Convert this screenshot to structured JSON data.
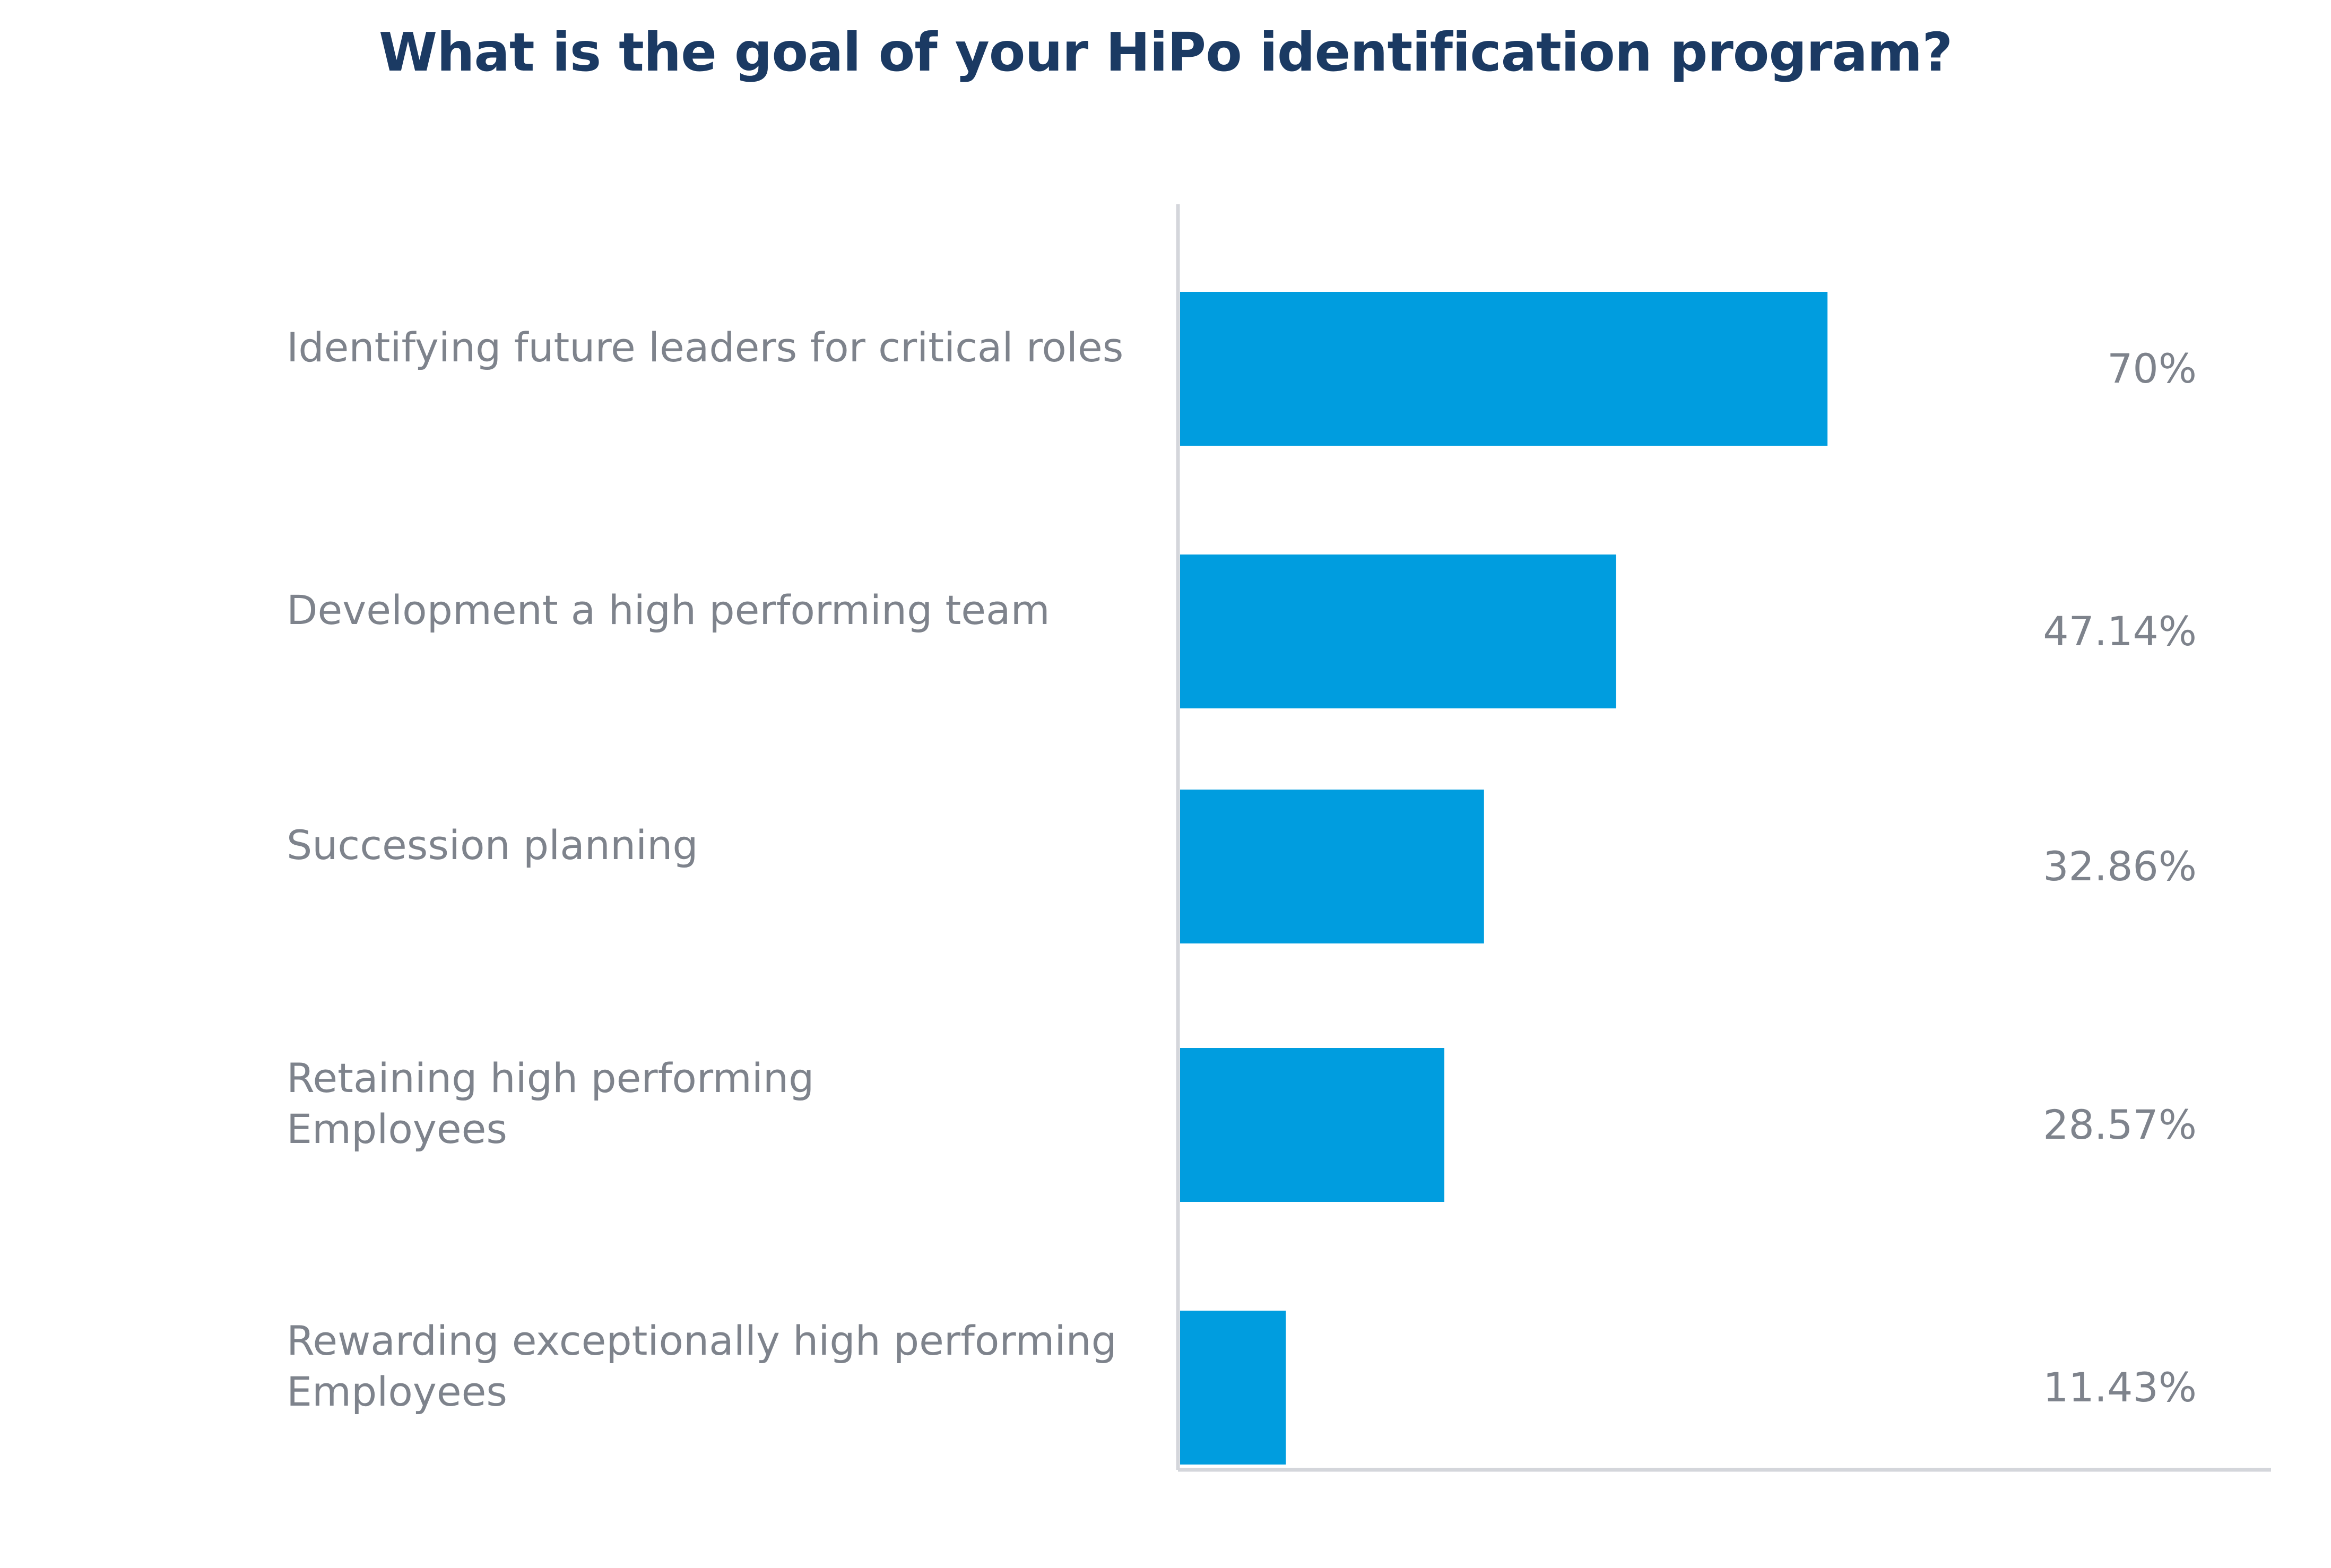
{
  "chart_data": {
    "type": "bar",
    "orientation": "horizontal",
    "title": "What is the goal of your HiPo identification program?",
    "categories": [
      [
        "Identifying future leaders for critical roles"
      ],
      [
        "Development a high performing team"
      ],
      [
        "Succession planning"
      ],
      [
        "Retaining high performing",
        "Employees"
      ],
      [
        "Rewarding exceptionally high performing",
        "Employees"
      ]
    ],
    "values": [
      70,
      47.14,
      32.86,
      28.57,
      11.43
    ],
    "value_labels": [
      "70%",
      "47.14%",
      "32.86%",
      "28.57%",
      "11.43%"
    ],
    "unit": "%",
    "xlim": [
      0,
      100
    ],
    "xlabel": "",
    "ylabel": "",
    "grid": false,
    "legend": "none",
    "colors": {
      "bar": "#009ddf",
      "axis": "#d4d6db",
      "title": "#1b3a63",
      "label": "#7e838c"
    }
  }
}
